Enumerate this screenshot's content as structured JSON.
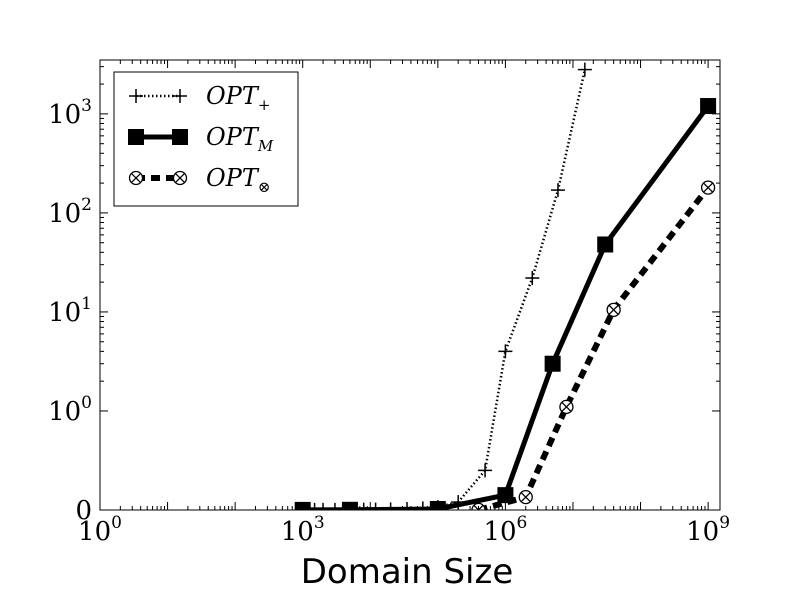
{
  "chart_data": {
    "type": "line",
    "title": "",
    "xlabel": "Domain Size",
    "ylabel": "",
    "x_scale": "log",
    "y_scale": "symlog",
    "xlim": [
      1,
      1500000000
    ],
    "ylim": [
      0,
      3500
    ],
    "grid": false,
    "legend_position": "top-left",
    "x_ticks": [
      {
        "base": "10",
        "exp": "0",
        "value": 1
      },
      {
        "base": "10",
        "exp": "3",
        "value": 1000
      },
      {
        "base": "10",
        "exp": "6",
        "value": 1000000
      },
      {
        "base": "10",
        "exp": "9",
        "value": 1000000000
      }
    ],
    "y_ticks": [
      {
        "base": "0",
        "exp": "",
        "value": 0
      },
      {
        "base": "10",
        "exp": "0",
        "value": 1
      },
      {
        "base": "10",
        "exp": "1",
        "value": 10
      },
      {
        "base": "10",
        "exp": "2",
        "value": 100
      },
      {
        "base": "10",
        "exp": "3",
        "value": 1000
      }
    ],
    "series": [
      {
        "name": "OPT",
        "subscript": "+",
        "style": "dotted",
        "marker": "plus",
        "color": "#000000",
        "x": [
          1000,
          1500,
          2000,
          3000,
          5000,
          8000,
          12000,
          20000,
          35000,
          60000,
          100000,
          200000,
          500000,
          1000000,
          2500000,
          6000000,
          15000000
        ],
        "y": [
          0.001,
          0.001,
          0.001,
          0.001,
          0.002,
          0.003,
          0.004,
          0.006,
          0.01,
          0.016,
          0.03,
          0.08,
          0.4,
          4,
          22,
          170,
          2800
        ]
      },
      {
        "name": "OPT",
        "subscript": "M",
        "style": "solid",
        "marker": "square",
        "color": "#000000",
        "x": [
          1000,
          5000,
          100000,
          1000000,
          5000000,
          30000000,
          1000000000
        ],
        "y": [
          0.001,
          0.002,
          0.01,
          0.15,
          3,
          48,
          1200
        ]
      },
      {
        "name": "OPT",
        "subscript": "⊗",
        "style": "dashed",
        "marker": "circle-x",
        "color": "#000000",
        "x": [
          400000,
          2000000,
          8000000,
          40000000,
          1000000000
        ],
        "y": [
          0.001,
          0.13,
          1.1,
          10.5,
          180
        ]
      }
    ]
  }
}
